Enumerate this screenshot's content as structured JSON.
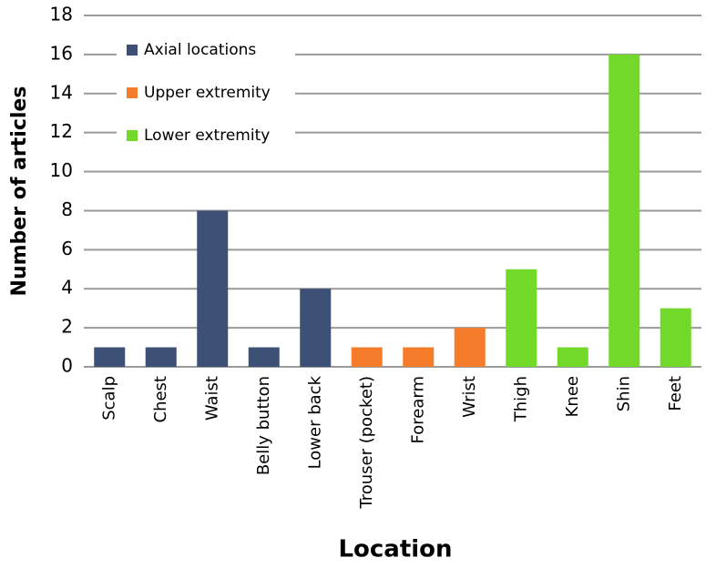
{
  "chart_data": {
    "type": "bar",
    "x_label": "Location",
    "y_label": "Number of articles",
    "categories": [
      "Scalp",
      "Chest",
      "Waist",
      "Belly button",
      "Lower back",
      "Trouser (pocket)",
      "Forearm",
      "Wrist",
      "Thigh",
      "Knee",
      "Shin",
      "Feet"
    ],
    "series": [
      {
        "name": "Axial locations",
        "color": "#3d5075",
        "values": [
          1,
          1,
          8,
          1,
          4,
          null,
          null,
          null,
          null,
          null,
          null,
          null
        ]
      },
      {
        "name": "Upper extremity",
        "color": "#f57c2a",
        "values": [
          null,
          null,
          null,
          null,
          null,
          1,
          1,
          2,
          null,
          null,
          null,
          null
        ]
      },
      {
        "name": "Lower extremity",
        "color": "#72d82a",
        "values": [
          null,
          null,
          null,
          null,
          null,
          null,
          null,
          null,
          5,
          1,
          16,
          3
        ]
      }
    ],
    "ylim": [
      0,
      18
    ],
    "yticks": [
      0,
      2,
      4,
      6,
      8,
      10,
      12,
      14,
      16,
      18
    ],
    "grid": true,
    "legend": "upper-left"
  }
}
